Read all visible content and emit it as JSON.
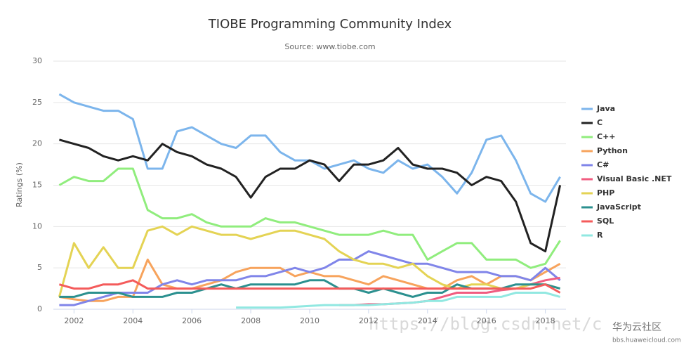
{
  "chart_data": {
    "type": "line",
    "title": "TIOBE Programming Community Index",
    "subtitle": "Source: www.tiobe.com",
    "y_label": "Ratings (%)",
    "x": [
      2001.5,
      2002,
      2002.5,
      2003,
      2003.5,
      2004,
      2004.5,
      2005,
      2005.5,
      2006,
      2006.5,
      2007,
      2007.5,
      2008,
      2008.5,
      2009,
      2009.5,
      2010,
      2010.5,
      2011,
      2011.5,
      2012,
      2012.5,
      2013,
      2013.5,
      2014,
      2014.5,
      2015,
      2015.5,
      2016,
      2016.5,
      2017,
      2017.5,
      2018,
      2018.5
    ],
    "xlim": [
      2001.3,
      2018.7
    ],
    "xticks": [
      2002,
      2004,
      2006,
      2008,
      2010,
      2012,
      2014,
      2016,
      2018
    ],
    "ylim": [
      0,
      30
    ],
    "yticks": [
      0,
      5,
      10,
      15,
      20,
      25,
      30
    ],
    "legend": "right",
    "series": [
      {
        "name": "Java",
        "color": "#7cb5ec",
        "values": [
          26,
          25,
          24.5,
          24,
          24,
          23,
          17,
          17,
          21.5,
          22,
          21,
          20,
          19.5,
          21,
          21,
          19,
          18,
          18,
          17,
          17.5,
          18,
          17,
          16.5,
          18,
          17,
          17.5,
          16,
          14,
          16.5,
          20.5,
          21,
          18,
          14,
          13,
          16
        ]
      },
      {
        "name": "C",
        "color": "#222222",
        "values": [
          20.5,
          20,
          19.5,
          18.5,
          18,
          18.5,
          18,
          20,
          19,
          18.5,
          17.5,
          17,
          16,
          13.5,
          16,
          17,
          17,
          18,
          17.5,
          15.5,
          17.5,
          17.5,
          18,
          19.5,
          17.5,
          17,
          17,
          16.5,
          15,
          16,
          15.5,
          13,
          8,
          7,
          15
        ]
      },
      {
        "name": "C++",
        "color": "#90ed7d",
        "values": [
          15,
          16,
          15.5,
          15.5,
          17,
          17,
          12,
          11,
          11,
          11.5,
          10.5,
          10,
          10,
          10,
          11,
          10.5,
          10.5,
          10,
          9.5,
          9,
          9,
          9,
          9.5,
          9,
          9,
          6,
          7,
          8,
          8,
          6,
          6,
          6,
          5,
          5.5,
          8.3
        ]
      },
      {
        "name": "Python",
        "color": "#f7a35c",
        "values": [
          1.5,
          1.2,
          1,
          1,
          1.5,
          1.5,
          6,
          3,
          2.5,
          2.5,
          3,
          3.5,
          4.5,
          5,
          5,
          5,
          4,
          4.5,
          4,
          4,
          3.5,
          3,
          4,
          3.5,
          3,
          2.5,
          2.5,
          3.5,
          4,
          3,
          4,
          4,
          3.5,
          4.5,
          5.5
        ]
      },
      {
        "name": "C#",
        "color": "#8085e9",
        "values": [
          0.5,
          0.5,
          1,
          1.5,
          2,
          2,
          2,
          3,
          3.5,
          3,
          3.5,
          3.5,
          3.5,
          4,
          4,
          4.5,
          5,
          4.5,
          5,
          6,
          6,
          7,
          6.5,
          6,
          5.5,
          5.5,
          5,
          4.5,
          4.5,
          4.5,
          4,
          4,
          3.5,
          5,
          3.5
        ]
      },
      {
        "name": "Visual Basic .NET",
        "color": "#f15c80",
        "values": [
          null,
          null,
          null,
          null,
          null,
          null,
          null,
          null,
          null,
          null,
          null,
          null,
          null,
          null,
          null,
          null,
          null,
          null,
          null,
          0.5,
          0.5,
          0.6,
          0.6,
          0.7,
          0.8,
          1,
          1.5,
          2,
          2,
          2,
          2.3,
          2.5,
          3,
          3.5,
          3.8
        ]
      },
      {
        "name": "PHP",
        "color": "#e4d354",
        "values": [
          1.5,
          8,
          5,
          7.5,
          5,
          5,
          9.5,
          10,
          9,
          10,
          9.5,
          9,
          9,
          8.5,
          9,
          9.5,
          9.5,
          9,
          8.5,
          7,
          6,
          5.5,
          5.5,
          5,
          5.5,
          4,
          3,
          2.5,
          3,
          3,
          2.5,
          2.5,
          3,
          3,
          2.5
        ]
      },
      {
        "name": "JavaScript",
        "color": "#2b908f",
        "values": [
          1.5,
          1.5,
          2,
          2,
          2,
          1.5,
          1.5,
          1.5,
          2,
          2,
          2.5,
          3,
          2.5,
          3,
          3,
          3,
          3,
          3.5,
          3.5,
          2.5,
          2.5,
          2,
          2.5,
          2,
          1.5,
          2,
          2,
          3,
          2.5,
          2.5,
          2.5,
          3,
          3,
          3,
          2.5
        ]
      },
      {
        "name": "SQL",
        "color": "#f45b5b",
        "values": [
          3,
          2.5,
          2.5,
          3,
          3,
          3.5,
          2.5,
          2.5,
          2.5,
          2.5,
          2.5,
          2.5,
          2.5,
          2.5,
          2.5,
          2.5,
          2.5,
          2.5,
          2.5,
          2.5,
          2.5,
          2.5,
          2.5,
          2.5,
          2.5,
          2.5,
          2.5,
          2.5,
          2.5,
          2.5,
          2.5,
          2.5,
          2.5,
          3,
          2
        ]
      },
      {
        "name": "R",
        "color": "#91e8e1",
        "values": [
          null,
          null,
          null,
          null,
          null,
          null,
          null,
          null,
          null,
          null,
          null,
          null,
          0.2,
          0.2,
          0.2,
          0.2,
          0.3,
          0.4,
          0.5,
          0.5,
          0.5,
          0.5,
          0.6,
          0.7,
          0.8,
          1,
          1,
          1.5,
          1.5,
          1.5,
          1.5,
          2,
          2,
          2,
          1.5
        ]
      }
    ],
    "annotations": [
      "https://blog.csdn.net/c",
      "华为云社区",
      "bbs.huaweicloud.com"
    ]
  }
}
